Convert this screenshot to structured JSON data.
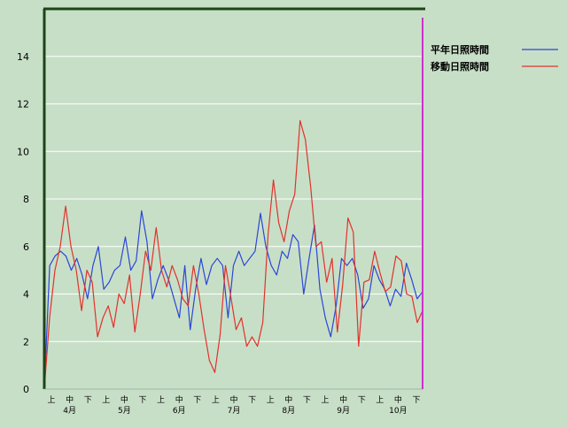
{
  "chart_data": {
    "type": "line",
    "title": "",
    "xlabel": "",
    "ylabel": "",
    "ylim": [
      0,
      16
    ],
    "y_ticks": [
      0,
      2,
      4,
      6,
      8,
      10,
      12,
      14
    ],
    "grid": true,
    "legend_position": "top-right",
    "x_count": 41,
    "x_dekad_labels": [
      "上",
      "中",
      "下"
    ],
    "x_month_labels": [
      "4月",
      "5月",
      "6月",
      "7月",
      "8月",
      "9月",
      "10月"
    ],
    "x_tick_labels": [
      "上",
      "中",
      "下",
      "上",
      "中",
      "下",
      "上",
      "中",
      "下",
      "上",
      "中",
      "下",
      "上",
      "中",
      "下",
      "上",
      "中",
      "下",
      "上",
      "中",
      "下"
    ],
    "colors": {
      "background": "#c8dfc7",
      "frame": "#1c4518",
      "grid": "#ffffff",
      "marker": "#cc33cc"
    },
    "series": [
      {
        "name": "平年日照時間",
        "color": "#2b46d6",
        "values": [
          0.0,
          5.2,
          5.6,
          5.8,
          5.6,
          5.0,
          5.5,
          4.8,
          3.8,
          5.2,
          6.0,
          4.2,
          4.5,
          5.0,
          5.2,
          6.4,
          5.0,
          5.4,
          7.5,
          6.2,
          3.8,
          4.6,
          5.2,
          4.6,
          3.8,
          3.0,
          5.2,
          2.5,
          4.2,
          5.5,
          4.4,
          5.2,
          5.5,
          5.2,
          3.0,
          5.2,
          5.8,
          5.2,
          5.5,
          5.8,
          7.4,
          6.0,
          5.2,
          4.8,
          5.8,
          5.5,
          6.5,
          6.2,
          4.0,
          5.5,
          6.9,
          4.2,
          3.0,
          2.2,
          3.5,
          5.5,
          5.2,
          5.5,
          4.8,
          3.4,
          3.8,
          5.2,
          4.6,
          4.2,
          3.5,
          4.2,
          3.9,
          5.3,
          4.6,
          3.8,
          4.1
        ]
      },
      {
        "name": "移動日照時間",
        "color": "#e0322c",
        "values": [
          0.0,
          3.0,
          5.0,
          6.0,
          7.7,
          6.0,
          5.0,
          3.3,
          5.0,
          4.5,
          2.2,
          3.0,
          3.5,
          2.6,
          4.0,
          3.6,
          4.8,
          2.4,
          4.0,
          5.8,
          5.0,
          6.8,
          5.0,
          4.3,
          5.2,
          4.6,
          3.8,
          3.5,
          5.2,
          4.0,
          2.5,
          1.2,
          0.7,
          2.3,
          5.2,
          3.9,
          2.5,
          3.0,
          1.8,
          2.2,
          1.8,
          2.8,
          6.5,
          8.8,
          7.0,
          6.2,
          7.5,
          8.2,
          11.3,
          10.5,
          8.5,
          6.0,
          6.2,
          4.5,
          5.5,
          2.4,
          4.4,
          7.2,
          6.6,
          1.8,
          4.5,
          4.6,
          5.8,
          4.9,
          4.1,
          4.3,
          5.6,
          5.4,
          4.0,
          3.9,
          2.8,
          3.3
        ]
      }
    ]
  }
}
